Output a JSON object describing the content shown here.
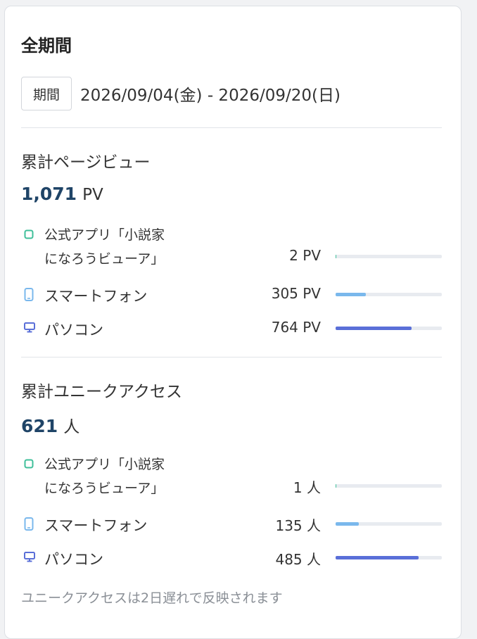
{
  "header": {
    "title": "全期間",
    "period_label": "期間",
    "period_value": "2026/09/04(金) - 2026/09/20(日)"
  },
  "pageviews": {
    "title": "累計ページビュー",
    "total": "1,071",
    "unit": "PV",
    "rows": [
      {
        "label_line1": "公式アプリ「小説家",
        "label_line2": "になろうビューア」",
        "value": "2 PV",
        "share": 0.002
      },
      {
        "label": "スマートフォン",
        "value": "305 PV",
        "share": 0.285
      },
      {
        "label": "パソコン",
        "value": "764 PV",
        "share": 0.713
      }
    ]
  },
  "unique": {
    "title": "累計ユニークアクセス",
    "total": "621",
    "unit": "人",
    "rows": [
      {
        "label_line1": "公式アプリ「小説家",
        "label_line2": "になろうビューア」",
        "value": "1 人",
        "share": 0.002
      },
      {
        "label": "スマートフォン",
        "value": "135 人",
        "share": 0.217
      },
      {
        "label": "パソコン",
        "value": "485 人",
        "share": 0.781
      }
    ]
  },
  "note": "ユニークアクセスは2日遅れで反映されます",
  "icons": {
    "app": "app-square-icon",
    "smartphone": "smartphone-icon",
    "pc": "monitor-icon"
  },
  "colors": {
    "app": "#3fbf9a",
    "smartphone": "#7ab8ec",
    "pc": "#5a6fd8",
    "accent_number": "#1f4467"
  }
}
